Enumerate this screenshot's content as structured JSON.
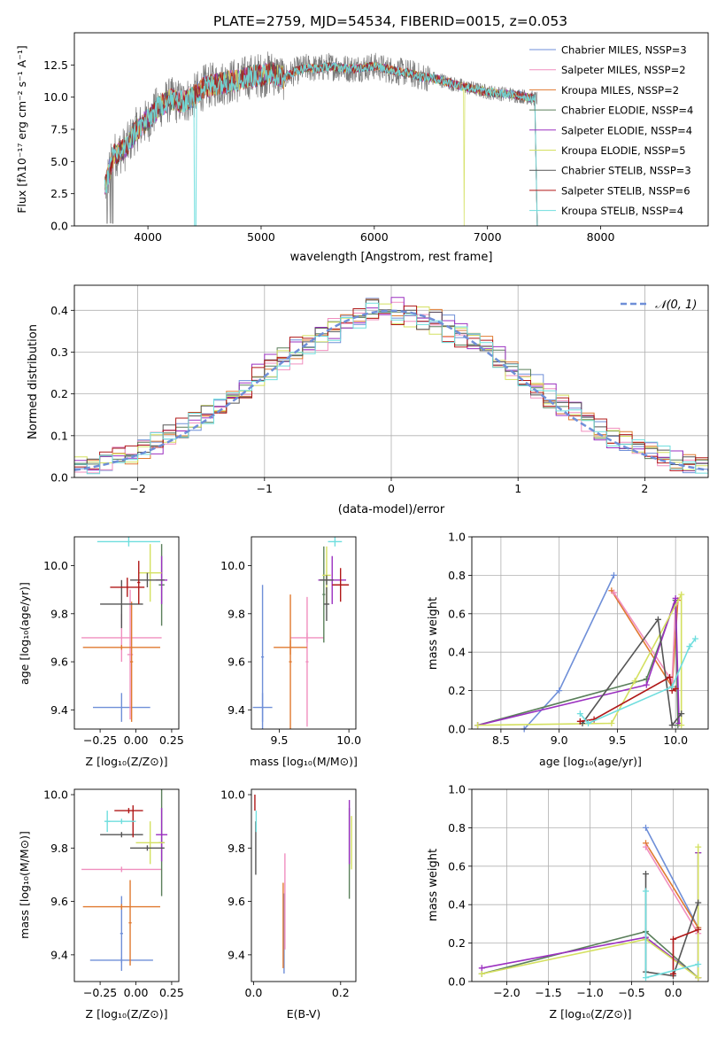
{
  "chart_data": [
    {
      "id": "spectrum",
      "type": "line",
      "title": "PLATE=2759, MJD=54534, FIBERID=0015, z=0.053",
      "xlabel": "wavelength [Angstrom, rest frame]",
      "ylabel": "Flux [fλ10⁻¹⁷ erg cm⁻² s⁻¹ A⁻¹]",
      "xlim": [
        3350,
        8950
      ],
      "ylim": [
        0,
        15
      ],
      "xticks": [
        4000,
        5000,
        6000,
        7000,
        8000
      ],
      "yticks": [
        0.0,
        2.5,
        5.0,
        7.5,
        10.0,
        12.5
      ],
      "grid": false,
      "legend_position": "top-right",
      "data_wave_range": [
        3620,
        7440
      ],
      "series": [
        {
          "name": "Chabrier MILES, NSSP=3",
          "color": "#6f8fd8"
        },
        {
          "name": "Salpeter MILES, NSSP=2",
          "color": "#f08fbf"
        },
        {
          "name": "Kroupa MILES, NSSP=2",
          "color": "#e07a30"
        },
        {
          "name": "Chabrier ELODIE, NSSP=4",
          "color": "#5a7f5a"
        },
        {
          "name": "Salpeter ELODIE, NSSP=4",
          "color": "#9b30c0"
        },
        {
          "name": "Kroupa ELODIE, NSSP=5",
          "color": "#d4e060"
        },
        {
          "name": "Chabrier STELIB, NSSP=3",
          "color": "#555555"
        },
        {
          "name": "Salpeter STELIB, NSSP=6",
          "color": "#b01818"
        },
        {
          "name": "Kroupa STELIB, NSSP=4",
          "color": "#6fdede"
        }
      ],
      "envelope": [
        {
          "x": 3620,
          "y": 3.0
        },
        {
          "x": 3700,
          "y": 5.5
        },
        {
          "x": 3800,
          "y": 6.0
        },
        {
          "x": 3900,
          "y": 7.5
        },
        {
          "x": 4000,
          "y": 8.2
        },
        {
          "x": 4100,
          "y": 9.3
        },
        {
          "x": 4200,
          "y": 9.8
        },
        {
          "x": 4300,
          "y": 9.6
        },
        {
          "x": 4400,
          "y": 10.0
        },
        {
          "x": 4500,
          "y": 10.8
        },
        {
          "x": 4600,
          "y": 11.0
        },
        {
          "x": 4700,
          "y": 11.2
        },
        {
          "x": 4800,
          "y": 11.3
        },
        {
          "x": 4900,
          "y": 11.6
        },
        {
          "x": 5000,
          "y": 11.7
        },
        {
          "x": 5100,
          "y": 11.9
        },
        {
          "x": 5200,
          "y": 11.5
        },
        {
          "x": 5300,
          "y": 12.0
        },
        {
          "x": 5400,
          "y": 12.3
        },
        {
          "x": 5500,
          "y": 12.2
        },
        {
          "x": 5600,
          "y": 12.4
        },
        {
          "x": 5700,
          "y": 12.3
        },
        {
          "x": 5800,
          "y": 12.2
        },
        {
          "x": 5900,
          "y": 12.3
        },
        {
          "x": 6000,
          "y": 12.4
        },
        {
          "x": 6100,
          "y": 12.2
        },
        {
          "x": 6200,
          "y": 12.0
        },
        {
          "x": 6300,
          "y": 11.9
        },
        {
          "x": 6400,
          "y": 11.6
        },
        {
          "x": 6500,
          "y": 11.5
        },
        {
          "x": 6600,
          "y": 11.3
        },
        {
          "x": 6700,
          "y": 11.0
        },
        {
          "x": 6800,
          "y": 10.8
        },
        {
          "x": 6900,
          "y": 10.6
        },
        {
          "x": 7000,
          "y": 10.4
        },
        {
          "x": 7100,
          "y": 10.3
        },
        {
          "x": 7200,
          "y": 10.2
        },
        {
          "x": 7300,
          "y": 10.1
        },
        {
          "x": 7400,
          "y": 9.9
        }
      ]
    },
    {
      "id": "residuals",
      "type": "line",
      "xlabel": "(data-model)/error",
      "ylabel": "Normed distribution",
      "xlim": [
        -2.5,
        2.5
      ],
      "ylim": [
        0,
        0.46
      ],
      "xticks": [
        -2,
        -1,
        0,
        1,
        2
      ],
      "yticks": [
        0.0,
        0.1,
        0.2,
        0.3,
        0.4
      ],
      "grid": true,
      "legend_position": "top-right",
      "legend_label": "𝒩(0, 1)",
      "bin_width": 0.1,
      "normal_curve": {
        "mean": 0,
        "sigma": 1,
        "color": "#6f8fd8"
      }
    },
    {
      "id": "age-vs-Z",
      "type": "scatter",
      "xlabel": "Z [log₁₀(Z/Z⊙)]",
      "ylabel": "age  [log₁₀(age/yr)]",
      "xlim": [
        -0.43,
        0.3
      ],
      "ylim": [
        9.32,
        10.12
      ],
      "xticks": [
        -0.25,
        0.0,
        0.25
      ],
      "yticks": [
        9.4,
        9.6,
        9.8,
        10.0
      ],
      "grid": false,
      "points": [
        {
          "x": -0.1,
          "y": 9.41,
          "xerr": 0.2,
          "yerr": 0.06,
          "color": "#6f8fd8"
        },
        {
          "x": -0.04,
          "y": 9.63,
          "xerr": 0.02,
          "yerr": 0.27,
          "color": "#f08fbf"
        },
        {
          "x": -0.1,
          "y": 9.7,
          "xerr": 0.28,
          "yerr": 0.1,
          "color": "#f08fbf"
        },
        {
          "x": -0.1,
          "y": 9.66,
          "xerr": 0.27,
          "yerr": 0.01,
          "color": "#e07a30"
        },
        {
          "x": -0.03,
          "y": 9.6,
          "xerr": 0.01,
          "yerr": 0.25,
          "color": "#e07a30"
        },
        {
          "x": 0.18,
          "y": 9.92,
          "xerr": 0.02,
          "yerr": 0.17,
          "color": "#5a7f5a"
        },
        {
          "x": 0.18,
          "y": 9.94,
          "xerr": 0.04,
          "yerr": 0.1,
          "color": "#9b30c0"
        },
        {
          "x": 0.1,
          "y": 9.97,
          "xerr": 0.08,
          "yerr": 0.12,
          "color": "#d4e060"
        },
        {
          "x": -0.1,
          "y": 9.84,
          "xerr": 0.15,
          "yerr": 0.1,
          "color": "#555555"
        },
        {
          "x": 0.08,
          "y": 9.94,
          "xerr": 0.12,
          "yerr": 0.03,
          "color": "#555555"
        },
        {
          "x": -0.06,
          "y": 9.91,
          "xerr": 0.12,
          "yerr": 0.04,
          "color": "#b01818"
        },
        {
          "x": 0.02,
          "y": 9.93,
          "xerr": 0.01,
          "yerr": 0.09,
          "color": "#b01818"
        },
        {
          "x": -0.05,
          "y": 10.1,
          "xerr": 0.22,
          "yerr": 0.02,
          "color": "#6fdede"
        }
      ]
    },
    {
      "id": "age-vs-mass",
      "type": "scatter",
      "xlabel": "mass [log₁₀(M/M⊙)]",
      "ylabel": "",
      "xlim": [
        9.3,
        10.05
      ],
      "ylim": [
        9.32,
        10.12
      ],
      "xticks": [
        9.5,
        10.0
      ],
      "yticks": [
        9.4,
        9.6,
        9.8,
        10.0
      ],
      "grid": false,
      "points": [
        {
          "x": 9.38,
          "y": 9.41,
          "xerr": 0.07,
          "yerr": 0.06,
          "color": "#6f8fd8"
        },
        {
          "x": 9.38,
          "y": 9.62,
          "xerr": 0.01,
          "yerr": 0.3,
          "color": "#6f8fd8"
        },
        {
          "x": 9.7,
          "y": 9.7,
          "xerr": 0.12,
          "yerr": 0.02,
          "color": "#f08fbf"
        },
        {
          "x": 9.7,
          "y": 9.6,
          "xerr": 0.01,
          "yerr": 0.27,
          "color": "#f08fbf"
        },
        {
          "x": 9.58,
          "y": 9.66,
          "xerr": 0.12,
          "yerr": 0.03,
          "color": "#e07a30"
        },
        {
          "x": 9.58,
          "y": 9.6,
          "xerr": 0.01,
          "yerr": 0.28,
          "color": "#e07a30"
        },
        {
          "x": 9.82,
          "y": 9.88,
          "xerr": 0.01,
          "yerr": 0.2,
          "color": "#5a7f5a"
        },
        {
          "x": 9.88,
          "y": 9.94,
          "xerr": 0.1,
          "yerr": 0.1,
          "color": "#9b30c0"
        },
        {
          "x": 9.84,
          "y": 9.96,
          "xerr": 0.03,
          "yerr": 0.12,
          "color": "#d4e060"
        },
        {
          "x": 9.84,
          "y": 9.84,
          "xerr": 0.02,
          "yerr": 0.07,
          "color": "#555555"
        },
        {
          "x": 9.84,
          "y": 9.94,
          "xerr": 0.05,
          "yerr": 0.02,
          "color": "#555555"
        },
        {
          "x": 9.94,
          "y": 9.92,
          "xerr": 0.06,
          "yerr": 0.07,
          "color": "#b01818"
        },
        {
          "x": 9.9,
          "y": 10.1,
          "xerr": 0.05,
          "yerr": 0.02,
          "color": "#6fdede"
        }
      ]
    },
    {
      "id": "weight-vs-age",
      "type": "line",
      "xlabel": "age  [log₁₀(age/yr)]",
      "ylabel": "mass weight",
      "xlim": [
        8.25,
        10.28
      ],
      "ylim": [
        0,
        1.0
      ],
      "xticks": [
        8.5,
        9.0,
        9.5,
        10.0
      ],
      "yticks": [
        0.0,
        0.2,
        0.4,
        0.6,
        0.8,
        1.0
      ],
      "grid": true,
      "series": [
        {
          "color": "#6f8fd8",
          "x": [
            8.7,
            9.0,
            9.47
          ],
          "y": [
            0.0,
            0.2,
            0.8
          ]
        },
        {
          "color": "#e07a30",
          "x": [
            9.45,
            9.97,
            10.02
          ],
          "y": [
            0.72,
            0.22,
            0.67
          ]
        },
        {
          "color": "#f08fbf",
          "x": [
            9.47,
            9.97,
            10.0
          ],
          "y": [
            0.71,
            0.25,
            0.65
          ]
        },
        {
          "color": "#5a7f5a",
          "x": [
            8.3,
            9.75,
            10.0,
            10.02
          ],
          "y": [
            0.02,
            0.26,
            0.67,
            0.02
          ]
        },
        {
          "color": "#9b30c0",
          "x": [
            8.3,
            9.75,
            10.0,
            10.03
          ],
          "y": [
            0.02,
            0.23,
            0.68,
            0.03
          ]
        },
        {
          "color": "#d4e060",
          "x": [
            8.3,
            9.45,
            9.65,
            10.05,
            10.05
          ],
          "y": [
            0.02,
            0.03,
            0.25,
            0.7,
            0.02
          ]
        },
        {
          "color": "#555555",
          "x": [
            9.2,
            9.85,
            9.97,
            10.05
          ],
          "y": [
            0.03,
            0.57,
            0.02,
            0.08
          ]
        },
        {
          "color": "#b01818",
          "x": [
            9.18,
            9.3,
            9.95,
            9.97,
            10.0
          ],
          "y": [
            0.04,
            0.05,
            0.27,
            0.2,
            0.21
          ]
        },
        {
          "color": "#6fdede",
          "x": [
            9.18,
            9.25,
            9.97,
            10.12,
            10.17
          ],
          "y": [
            0.08,
            0.03,
            0.22,
            0.43,
            0.47
          ]
        }
      ]
    },
    {
      "id": "mass-vs-Z",
      "type": "scatter",
      "xlabel": "Z [log₁₀(Z/Z⊙)]",
      "ylabel": "mass [log₁₀(M/M⊙)]",
      "xlim": [
        -0.43,
        0.3
      ],
      "ylim": [
        9.3,
        10.02
      ],
      "xticks": [
        -0.25,
        0.0,
        0.25
      ],
      "yticks": [
        9.4,
        9.6,
        9.8,
        10.0
      ],
      "grid": false,
      "points": [
        {
          "x": -0.1,
          "y": 9.38,
          "xerr": 0.22,
          "yerr": 0.01,
          "color": "#6f8fd8"
        },
        {
          "x": -0.1,
          "y": 9.48,
          "xerr": 0.01,
          "yerr": 0.14,
          "color": "#6f8fd8"
        },
        {
          "x": -0.1,
          "y": 9.72,
          "xerr": 0.28,
          "yerr": 0.01,
          "color": "#f08fbf"
        },
        {
          "x": -0.1,
          "y": 9.58,
          "xerr": 0.27,
          "yerr": 0.01,
          "color": "#e07a30"
        },
        {
          "x": -0.04,
          "y": 9.52,
          "xerr": 0.01,
          "yerr": 0.16,
          "color": "#e07a30"
        },
        {
          "x": 0.18,
          "y": 9.82,
          "xerr": 0.02,
          "yerr": 0.2,
          "color": "#5a7f5a"
        },
        {
          "x": 0.18,
          "y": 9.85,
          "xerr": 0.04,
          "yerr": 0.1,
          "color": "#9b30c0"
        },
        {
          "x": 0.1,
          "y": 9.82,
          "xerr": 0.1,
          "yerr": 0.08,
          "color": "#d4e060"
        },
        {
          "x": -0.1,
          "y": 9.85,
          "xerr": 0.15,
          "yerr": 0.01,
          "color": "#555555"
        },
        {
          "x": 0.08,
          "y": 9.8,
          "xerr": 0.12,
          "yerr": 0.01,
          "color": "#555555"
        },
        {
          "x": -0.05,
          "y": 9.94,
          "xerr": 0.1,
          "yerr": 0.01,
          "color": "#b01818"
        },
        {
          "x": -0.02,
          "y": 9.9,
          "xerr": 0.01,
          "yerr": 0.06,
          "color": "#b01818"
        },
        {
          "x": -0.2,
          "y": 9.9,
          "xerr": 0.02,
          "yerr": 0.04,
          "color": "#6fdede"
        },
        {
          "x": -0.1,
          "y": 9.9,
          "xerr": 0.1,
          "yerr": 0.01,
          "color": "#6fdede"
        }
      ]
    },
    {
      "id": "mass-vs-ebv",
      "type": "scatter",
      "xlabel": "E(B-V)",
      "ylabel": "",
      "xlim": [
        -0.005,
        0.235
      ],
      "ylim": [
        9.3,
        10.02
      ],
      "xticks": [
        0.0,
        0.2
      ],
      "yticks": [
        9.4,
        9.6,
        9.8,
        10.0
      ],
      "grid": false,
      "points": [
        {
          "x": 0.07,
          "y": 9.48,
          "xerr": 0.0,
          "yerr": 0.15,
          "color": "#6f8fd8"
        },
        {
          "x": 0.072,
          "y": 9.6,
          "xerr": 0.0,
          "yerr": 0.18,
          "color": "#f08fbf"
        },
        {
          "x": 0.068,
          "y": 9.51,
          "xerr": 0.0,
          "yerr": 0.16,
          "color": "#e07a30"
        },
        {
          "x": 0.22,
          "y": 9.78,
          "xerr": 0.0,
          "yerr": 0.17,
          "color": "#5a7f5a"
        },
        {
          "x": 0.22,
          "y": 9.86,
          "xerr": 0.0,
          "yerr": 0.12,
          "color": "#9b30c0"
        },
        {
          "x": 0.225,
          "y": 9.82,
          "xerr": 0.0,
          "yerr": 0.1,
          "color": "#d4e060"
        },
        {
          "x": 0.005,
          "y": 9.8,
          "xerr": 0.0,
          "yerr": 0.1,
          "color": "#555555"
        },
        {
          "x": 0.003,
          "y": 9.97,
          "xerr": 0.0,
          "yerr": 0.03,
          "color": "#b01818"
        },
        {
          "x": 0.006,
          "y": 9.9,
          "xerr": 0.0,
          "yerr": 0.04,
          "color": "#6fdede"
        }
      ]
    },
    {
      "id": "weight-vs-Z",
      "type": "line",
      "xlabel": "Z [log₁₀(Z/Z⊙)]",
      "ylabel": "mass weight",
      "xlim": [
        -2.42,
        0.42
      ],
      "ylim": [
        0,
        1.0
      ],
      "xticks": [
        -2.0,
        -1.5,
        -1.0,
        -0.5,
        0.0
      ],
      "yticks": [
        0.0,
        0.2,
        0.4,
        0.6,
        0.8,
        1.0
      ],
      "grid": true,
      "series": [
        {
          "color": "#6f8fd8",
          "x": [
            -0.33,
            0.3
          ],
          "y": [
            0.8,
            0.28
          ]
        },
        {
          "color": "#e07a30",
          "x": [
            -0.33,
            0.3
          ],
          "y": [
            0.72,
            0.28
          ]
        },
        {
          "color": "#f08fbf",
          "x": [
            -0.33,
            0.3
          ],
          "y": [
            0.7,
            0.25
          ]
        },
        {
          "color": "#5a7f5a",
          "x": [
            -2.3,
            -0.33,
            0.3,
            0.3
          ],
          "y": [
            0.04,
            0.26,
            0.02,
            0.67
          ]
        },
        {
          "color": "#9b30c0",
          "x": [
            -2.3,
            -0.33,
            0.3,
            0.3
          ],
          "y": [
            0.07,
            0.23,
            0.02,
            0.67
          ]
        },
        {
          "color": "#d4e060",
          "x": [
            -2.3,
            -0.33,
            0.3,
            0.3
          ],
          "y": [
            0.04,
            0.22,
            0.02,
            0.7
          ]
        },
        {
          "color": "#555555",
          "x": [
            -0.33,
            -0.33,
            0.0,
            0.3
          ],
          "y": [
            0.56,
            0.05,
            0.03,
            0.41
          ]
        },
        {
          "color": "#b01818",
          "x": [
            0.0,
            0.0,
            0.3
          ],
          "y": [
            0.04,
            0.22,
            0.27
          ]
        },
        {
          "color": "#6fdede",
          "x": [
            -0.33,
            -0.33,
            0.3
          ],
          "y": [
            0.47,
            0.02,
            0.09
          ]
        }
      ]
    }
  ]
}
